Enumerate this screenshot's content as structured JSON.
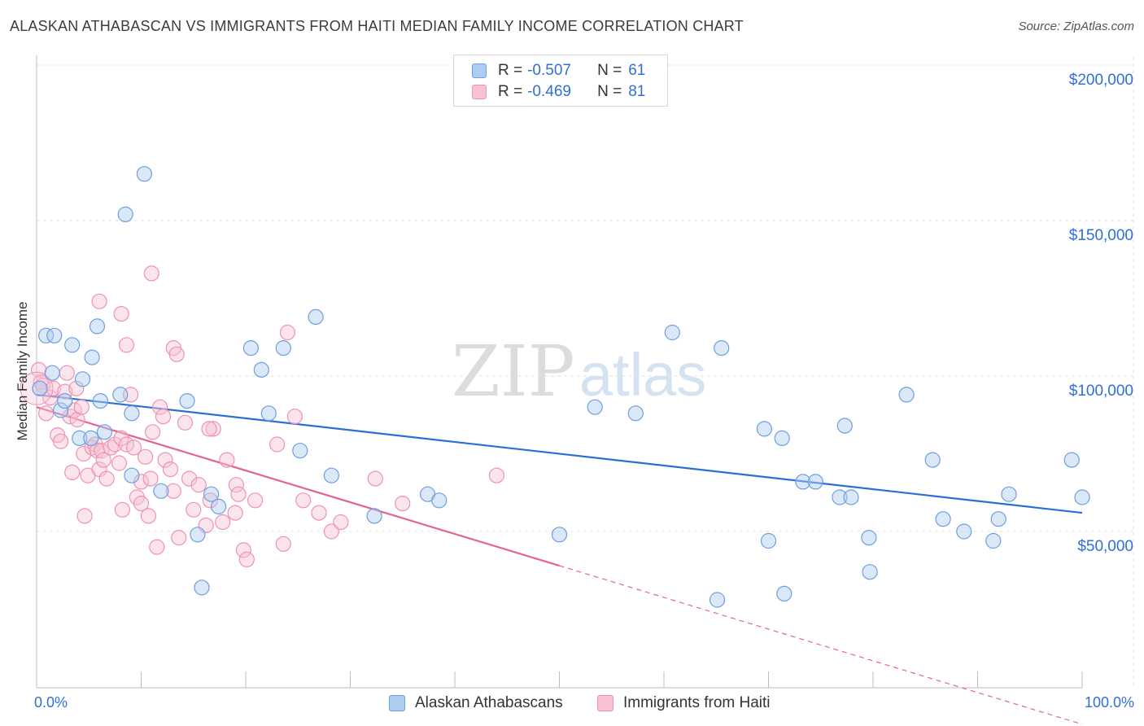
{
  "title": "ALASKAN ATHABASCAN VS IMMIGRANTS FROM HAITI MEDIAN FAMILY INCOME CORRELATION CHART",
  "source": "Source: ZipAtlas.com",
  "watermark": {
    "part1": "ZIP",
    "part2": "atlas"
  },
  "legend": {
    "series1": {
      "r_label": "R =",
      "r_value": "-0.507",
      "n_label": "N =",
      "n_value": "61"
    },
    "series2": {
      "r_label": "R =",
      "r_value": "-0.469",
      "n_label": "N =",
      "n_value": "81"
    }
  },
  "colors": {
    "blue_fill": "#aecbf0",
    "blue_stroke": "#6d9fe0",
    "blue_line": "#2a6fd4",
    "pink_fill": "#f7c3d4",
    "pink_stroke": "#ee92b0",
    "pink_line": "#e4648f",
    "axis_text": "#2f6fd6",
    "grid": "#e2e2e2"
  },
  "chart_data": {
    "type": "scatter",
    "title": "ALASKAN ATHABASCAN VS IMMIGRANTS FROM HAITI MEDIAN FAMILY INCOME CORRELATION CHART",
    "xlabel": "",
    "ylabel": "Median Family Income",
    "xlim": [
      0,
      100
    ],
    "ylim": [
      0,
      210000
    ],
    "x_tick_labels": [
      "0.0%",
      "100.0%"
    ],
    "y_ticks": [
      {
        "value": 50000,
        "label": "$50,000"
      },
      {
        "value": 100000,
        "label": "$100,000"
      },
      {
        "value": 150000,
        "label": "$150,000"
      },
      {
        "value": 200000,
        "label": "$200,000"
      }
    ],
    "series": [
      {
        "name": "Alaskan Athabascans",
        "color": "blue",
        "trend": {
          "x": [
            0,
            100
          ],
          "y": [
            94000,
            56000
          ],
          "dashed_x": []
        },
        "points": [
          [
            0.3,
            96000
          ],
          [
            0.9,
            113000
          ],
          [
            1.5,
            101000
          ],
          [
            1.7,
            113000
          ],
          [
            2.3,
            89000
          ],
          [
            2.7,
            92000
          ],
          [
            3.4,
            110000
          ],
          [
            4.1,
            80000
          ],
          [
            4.4,
            99000
          ],
          [
            5.2,
            80000
          ],
          [
            5.3,
            106000
          ],
          [
            5.8,
            116000
          ],
          [
            6.1,
            92000
          ],
          [
            6.5,
            82000
          ],
          [
            8.0,
            94000
          ],
          [
            8.5,
            152000
          ],
          [
            9.1,
            88000
          ],
          [
            9.1,
            68000
          ],
          [
            10.3,
            165000
          ],
          [
            11.9,
            63000
          ],
          [
            14.4,
            92000
          ],
          [
            15.4,
            49000
          ],
          [
            15.8,
            32000
          ],
          [
            16.7,
            62000
          ],
          [
            17.4,
            58000
          ],
          [
            20.5,
            109000
          ],
          [
            21.5,
            102000
          ],
          [
            22.2,
            88000
          ],
          [
            23.6,
            109000
          ],
          [
            25.2,
            76000
          ],
          [
            26.7,
            119000
          ],
          [
            28.2,
            68000
          ],
          [
            32.3,
            55000
          ],
          [
            37.4,
            62000
          ],
          [
            38.5,
            60000
          ],
          [
            50.0,
            49000
          ],
          [
            53.4,
            90000
          ],
          [
            57.3,
            88000
          ],
          [
            60.8,
            114000
          ],
          [
            65.1,
            28000
          ],
          [
            65.5,
            109000
          ],
          [
            69.6,
            83000
          ],
          [
            70.0,
            47000
          ],
          [
            71.3,
            80000
          ],
          [
            71.5,
            30000
          ],
          [
            73.3,
            66000
          ],
          [
            74.5,
            66000
          ],
          [
            76.8,
            61000
          ],
          [
            77.3,
            84000
          ],
          [
            77.9,
            61000
          ],
          [
            79.6,
            48000
          ],
          [
            79.7,
            37000
          ],
          [
            83.2,
            94000
          ],
          [
            85.7,
            73000
          ],
          [
            86.7,
            54000
          ],
          [
            88.7,
            50000
          ],
          [
            91.5,
            47000
          ],
          [
            92.0,
            54000
          ],
          [
            93.0,
            62000
          ],
          [
            99.0,
            73000
          ],
          [
            100.0,
            61000
          ]
        ]
      },
      {
        "name": "Immigrants from Haiti",
        "color": "pink",
        "trend": {
          "x": [
            0,
            50
          ],
          "y": [
            90000,
            39000
          ],
          "dashed_x": [
            50,
            100
          ]
        },
        "points": [
          [
            0.2,
            102000
          ],
          [
            0.4,
            98000
          ],
          [
            0.6,
            97000
          ],
          [
            0.9,
            88000
          ],
          [
            1.3,
            93000
          ],
          [
            1.6,
            96000
          ],
          [
            2.0,
            81000
          ],
          [
            2.3,
            79000
          ],
          [
            2.7,
            95000
          ],
          [
            2.9,
            101000
          ],
          [
            3.2,
            87000
          ],
          [
            3.4,
            69000
          ],
          [
            3.6,
            89000
          ],
          [
            3.8,
            96000
          ],
          [
            3.9,
            86000
          ],
          [
            4.3,
            90000
          ],
          [
            4.5,
            75000
          ],
          [
            4.6,
            55000
          ],
          [
            4.9,
            68000
          ],
          [
            5.3,
            77000
          ],
          [
            5.6,
            78000
          ],
          [
            5.8,
            76000
          ],
          [
            6.0,
            70000
          ],
          [
            6.2,
            76000
          ],
          [
            6.4,
            73000
          ],
          [
            6.7,
            67000
          ],
          [
            7.1,
            77000
          ],
          [
            7.5,
            78000
          ],
          [
            7.9,
            72000
          ],
          [
            8.1,
            80000
          ],
          [
            8.2,
            57000
          ],
          [
            8.6,
            78000
          ],
          [
            9.0,
            94000
          ],
          [
            9.3,
            77000
          ],
          [
            9.6,
            61000
          ],
          [
            10.0,
            66000
          ],
          [
            10.4,
            74000
          ],
          [
            10.7,
            55000
          ],
          [
            10.9,
            67000
          ],
          [
            11.1,
            82000
          ],
          [
            11.5,
            45000
          ],
          [
            11.8,
            90000
          ],
          [
            12.1,
            87000
          ],
          [
            12.3,
            73000
          ],
          [
            12.8,
            70000
          ],
          [
            13.1,
            63000
          ],
          [
            13.6,
            48000
          ],
          [
            14.2,
            85000
          ],
          [
            14.6,
            67000
          ],
          [
            15.0,
            57000
          ],
          [
            15.5,
            65000
          ],
          [
            16.2,
            52000
          ],
          [
            16.6,
            60000
          ],
          [
            16.9,
            83000
          ],
          [
            17.8,
            53000
          ],
          [
            18.2,
            73000
          ],
          [
            19.1,
            65000
          ],
          [
            19.3,
            62000
          ],
          [
            19.8,
            44000
          ],
          [
            20.1,
            41000
          ],
          [
            20.9,
            60000
          ],
          [
            23.0,
            78000
          ],
          [
            23.6,
            46000
          ],
          [
            24.0,
            114000
          ],
          [
            24.7,
            87000
          ],
          [
            25.5,
            60000
          ],
          [
            27.0,
            56000
          ],
          [
            28.2,
            50000
          ],
          [
            29.1,
            53000
          ],
          [
            32.4,
            67000
          ],
          [
            35.0,
            59000
          ],
          [
            44.0,
            68000
          ],
          [
            10.0,
            59000
          ],
          [
            6.0,
            124000
          ],
          [
            8.1,
            120000
          ],
          [
            8.6,
            110000
          ],
          [
            11.0,
            133000
          ],
          [
            13.1,
            109000
          ],
          [
            13.4,
            107000
          ],
          [
            16.5,
            83000
          ],
          [
            19.0,
            56000
          ]
        ]
      }
    ]
  },
  "bottom_legend": {
    "series1_label": "Alaskan Athabascans",
    "series2_label": "Immigrants from Haiti"
  },
  "axis": {
    "x_left_label": "0.0%",
    "x_right_label": "100.0%",
    "y_title": "Median Family Income"
  }
}
